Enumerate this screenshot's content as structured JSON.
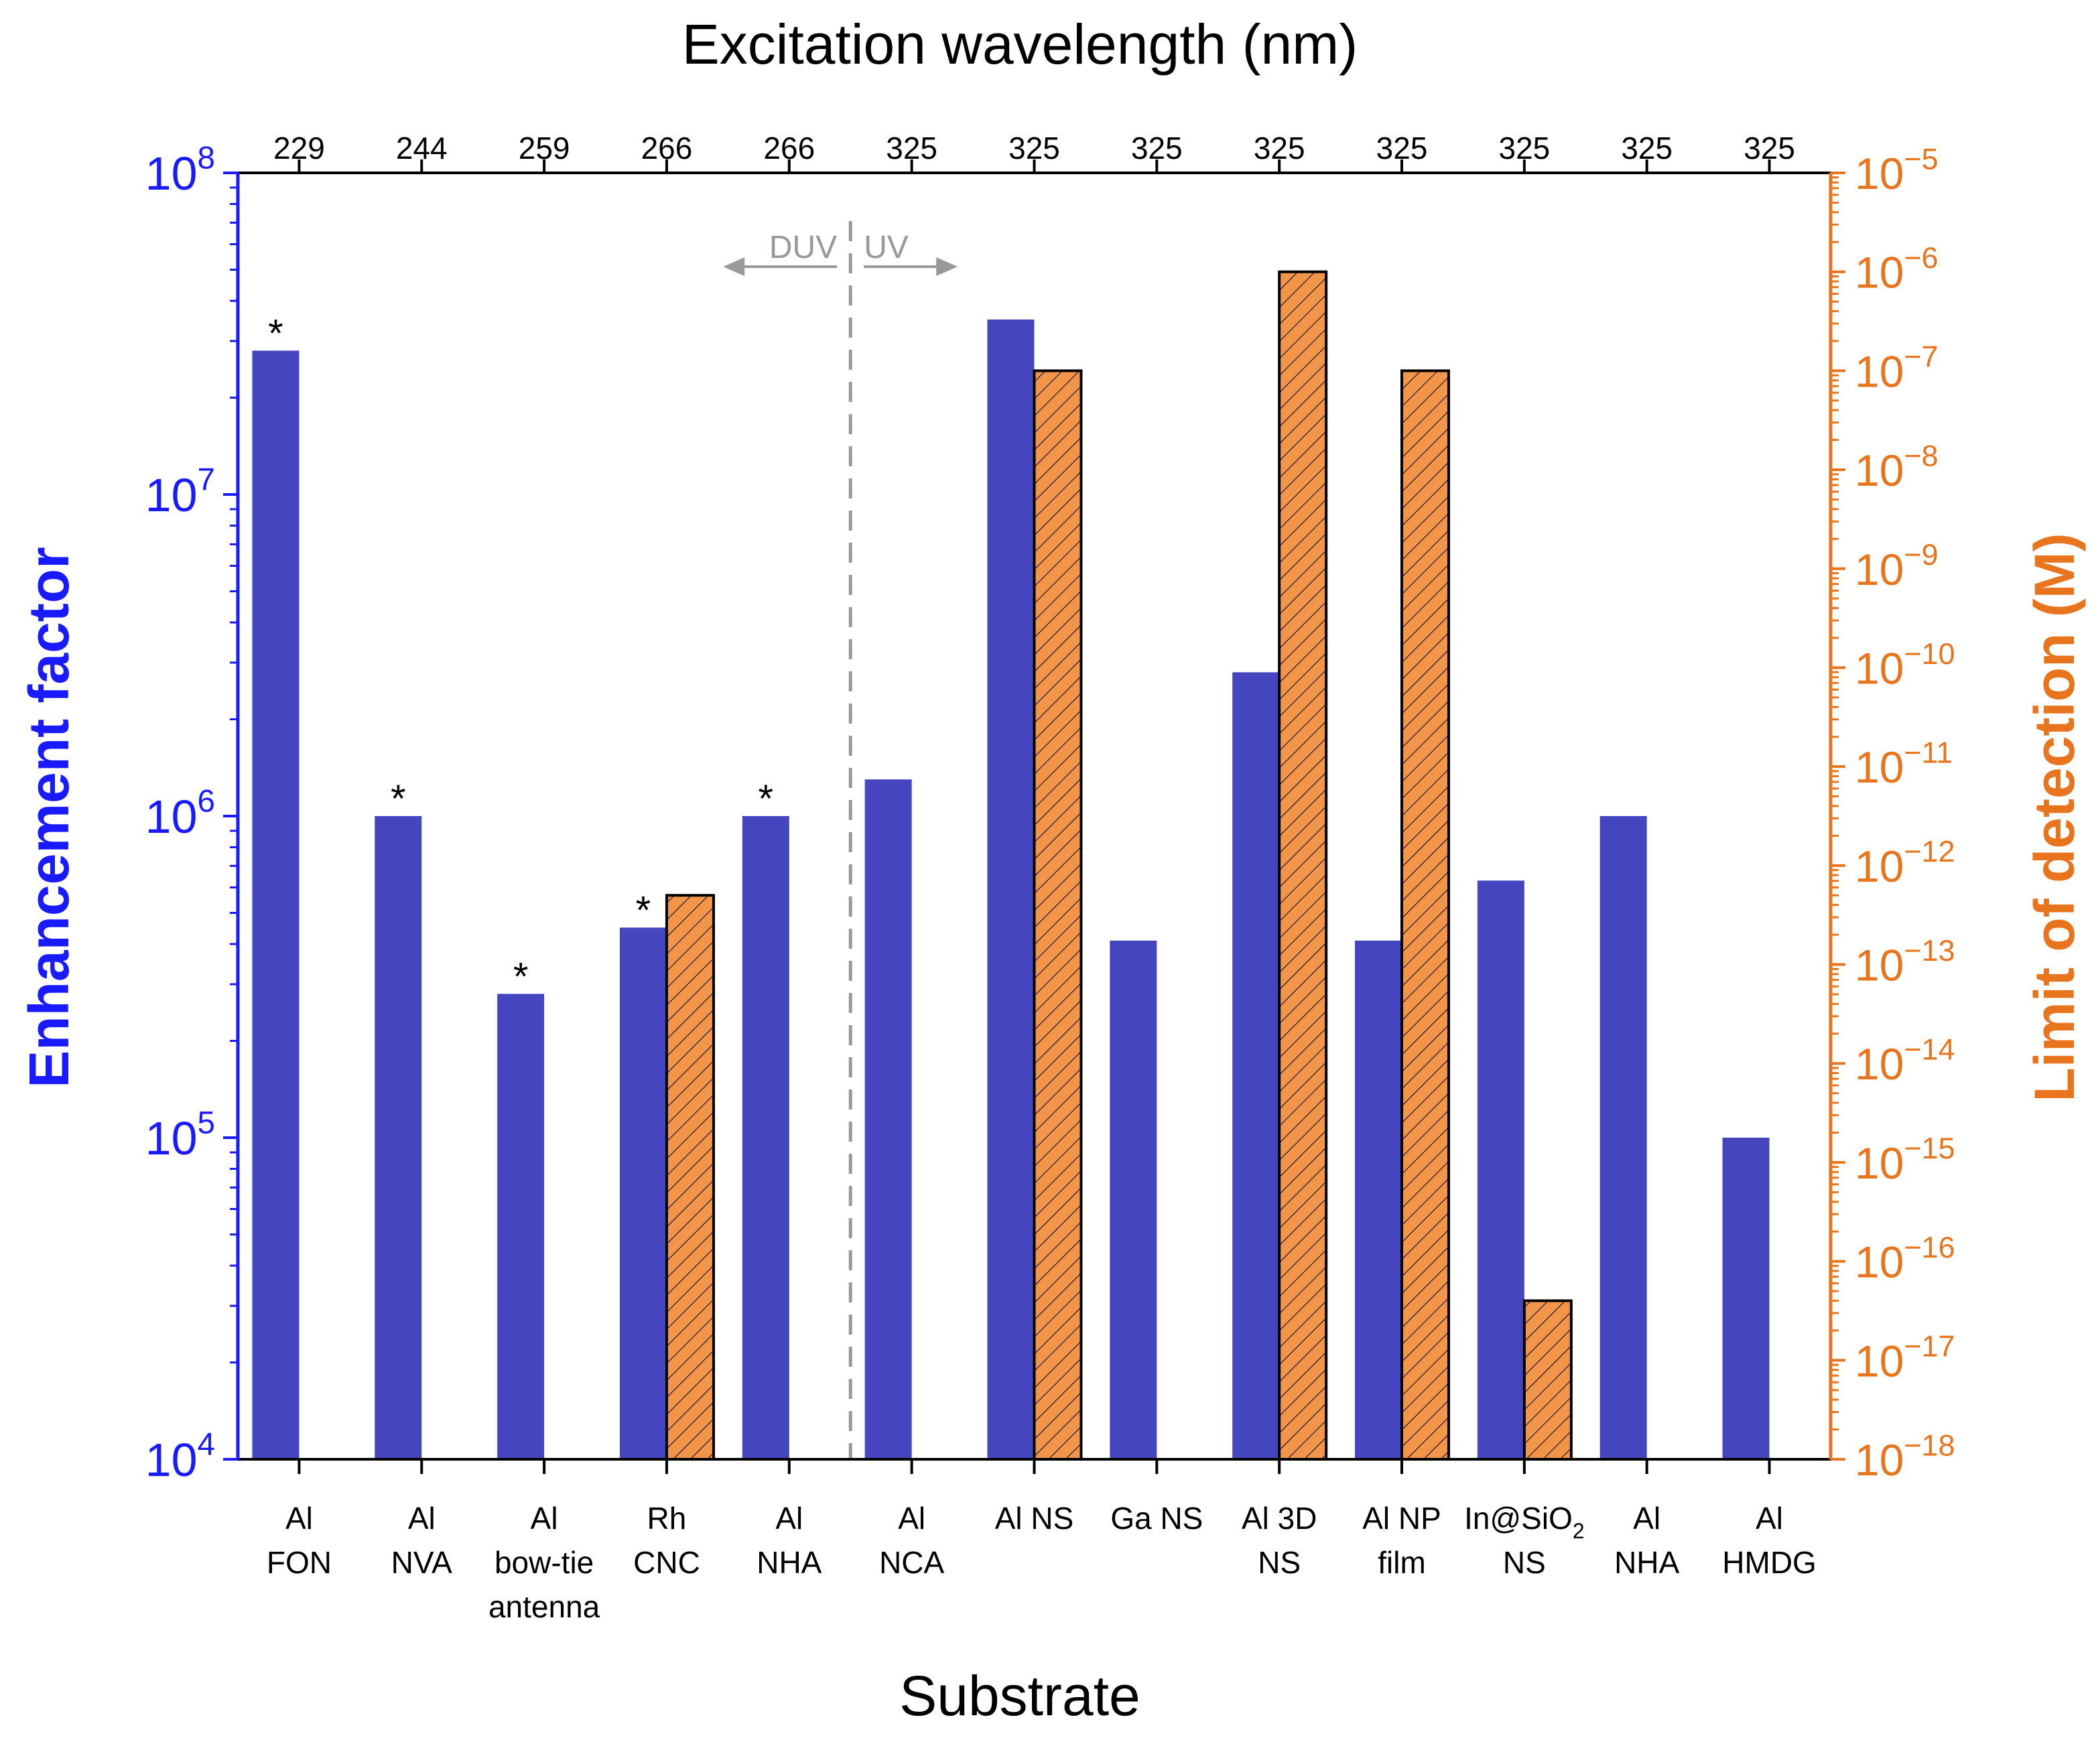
{
  "colors": {
    "ef_axis": "#1a1aff",
    "ef_bar": "#4545c0",
    "lod_axis": "#e8741e",
    "lod_bar": "#f0954a",
    "frame": "#000000",
    "divider": "#999999"
  },
  "chart_data": {
    "type": "bar",
    "xlabel": "Substrate",
    "top_axis_label": "Excitation wavelength (nm)",
    "y_left_label": "Enhancement factor",
    "y_right_label": "Limit of detection (M)",
    "y_left_scale": "log",
    "y_right_scale": "log",
    "y_left_lim": [
      10000,
      100000000
    ],
    "y_right_lim": [
      1e-18,
      1e-05
    ],
    "y_left_ticks": [
      {
        "base": "10",
        "exp": "4",
        "value": 4
      },
      {
        "base": "10",
        "exp": "5",
        "value": 5
      },
      {
        "base": "10",
        "exp": "6",
        "value": 6
      },
      {
        "base": "10",
        "exp": "7",
        "value": 7
      },
      {
        "base": "10",
        "exp": "8",
        "value": 8
      }
    ],
    "y_right_ticks": [
      {
        "base": "10",
        "exp": "−18",
        "value": -18
      },
      {
        "base": "10",
        "exp": "−17",
        "value": -17
      },
      {
        "base": "10",
        "exp": "−16",
        "value": -16
      },
      {
        "base": "10",
        "exp": "−15",
        "value": -15
      },
      {
        "base": "10",
        "exp": "−14",
        "value": -14
      },
      {
        "base": "10",
        "exp": "−13",
        "value": -13
      },
      {
        "base": "10",
        "exp": "−12",
        "value": -12
      },
      {
        "base": "10",
        "exp": "−11",
        "value": -11
      },
      {
        "base": "10",
        "exp": "−10",
        "value": -10
      },
      {
        "base": "10",
        "exp": "−9",
        "value": -9
      },
      {
        "base": "10",
        "exp": "−8",
        "value": -8
      },
      {
        "base": "10",
        "exp": "−7",
        "value": -7
      },
      {
        "base": "10",
        "exp": "−6",
        "value": -6
      },
      {
        "base": "10",
        "exp": "−5",
        "value": -5
      }
    ],
    "categories": [
      {
        "lines": [
          "Al",
          "FON"
        ],
        "wavelength": "229"
      },
      {
        "lines": [
          "Al",
          "NVA"
        ],
        "wavelength": "244"
      },
      {
        "lines": [
          "Al",
          "bow-tie",
          "antenna"
        ],
        "wavelength": "259"
      },
      {
        "lines": [
          "Rh",
          "CNC"
        ],
        "wavelength": "266"
      },
      {
        "lines": [
          "Al",
          "NHA"
        ],
        "wavelength": "266"
      },
      {
        "lines": [
          "Al",
          "NCA"
        ],
        "wavelength": "325"
      },
      {
        "lines": [
          "Al NS"
        ],
        "wavelength": "325"
      },
      {
        "lines": [
          "Ga NS"
        ],
        "wavelength": "325"
      },
      {
        "lines": [
          "Al 3D",
          "NS"
        ],
        "wavelength": "325"
      },
      {
        "lines": [
          "Al NP",
          "film"
        ],
        "wavelength": "325"
      },
      {
        "lines": [
          "In@SiO",
          "NS"
        ],
        "sub": "2",
        "wavelength": "325"
      },
      {
        "lines": [
          "Al",
          "NHA"
        ],
        "wavelength": "325"
      },
      {
        "lines": [
          "Al",
          "HMDG"
        ],
        "wavelength": "325"
      }
    ],
    "series": [
      {
        "name": "Enhancement factor",
        "axis": "left",
        "values": [
          28000000,
          1000000,
          280000,
          450000,
          1000000,
          1300000,
          35000000,
          410000,
          2800000,
          410000,
          630000,
          1000000,
          100000
        ],
        "asterisk": [
          true,
          true,
          true,
          true,
          true,
          false,
          false,
          false,
          false,
          false,
          false,
          false,
          false
        ]
      },
      {
        "name": "Limit of detection (M)",
        "axis": "right",
        "values": [
          null,
          null,
          null,
          5e-13,
          null,
          null,
          1e-07,
          null,
          1e-06,
          1e-07,
          4e-17,
          null,
          null
        ],
        "hatched": true
      }
    ],
    "asterisk_symbol": "*",
    "annotations": {
      "divider_after_index": 4,
      "left_region_label": "DUV",
      "right_region_label": "UV"
    }
  }
}
